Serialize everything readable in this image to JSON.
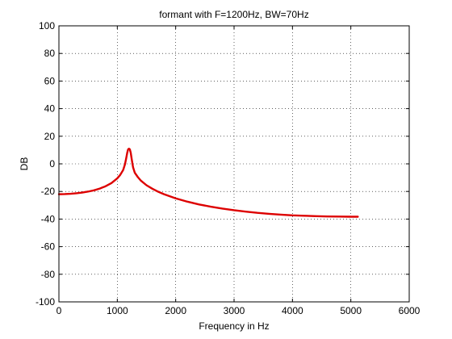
{
  "chart_data": {
    "type": "line",
    "title": "formant with F=1200Hz, BW=70Hz",
    "xlabel": "Frequency in Hz",
    "ylabel": "DB",
    "xlim": [
      0,
      6000
    ],
    "ylim": [
      -100,
      100
    ],
    "xticks": [
      0,
      1000,
      2000,
      3000,
      4000,
      5000,
      6000
    ],
    "yticks": [
      100,
      80,
      60,
      40,
      20,
      0,
      -20,
      -40,
      -60,
      -80,
      -100
    ],
    "grid": true,
    "line_color": "#dd0000",
    "series": [
      {
        "x": [
          0,
          100,
          200,
          300,
          400,
          500,
          600,
          700,
          800,
          900,
          1000,
          1050,
          1100,
          1130,
          1150,
          1170,
          1185,
          1200,
          1215,
          1230,
          1250,
          1270,
          1300,
          1350,
          1400,
          1500,
          1600,
          1700,
          1800,
          2000,
          2200,
          2400,
          2600,
          2800,
          3000,
          3200,
          3400,
          3600,
          3800,
          4000,
          4200,
          4400,
          4600,
          4800,
          5000,
          5120
        ],
        "y": [
          -22,
          -21.9,
          -21.7,
          -21.3,
          -20.8,
          -20.1,
          -19.2,
          -17.9,
          -16.2,
          -13.9,
          -10.5,
          -8,
          -4.5,
          -0.5,
          3.5,
          8,
          10.5,
          11,
          10.5,
          8,
          2.5,
          -2.5,
          -6.5,
          -9.5,
          -12,
          -15.5,
          -18,
          -20.2,
          -22,
          -25,
          -27.4,
          -29.4,
          -31,
          -32.4,
          -33.6,
          -34.6,
          -35.5,
          -36.2,
          -36.8,
          -37.3,
          -37.6,
          -37.9,
          -38.1,
          -38.2,
          -38.3,
          -38.3
        ]
      }
    ]
  }
}
